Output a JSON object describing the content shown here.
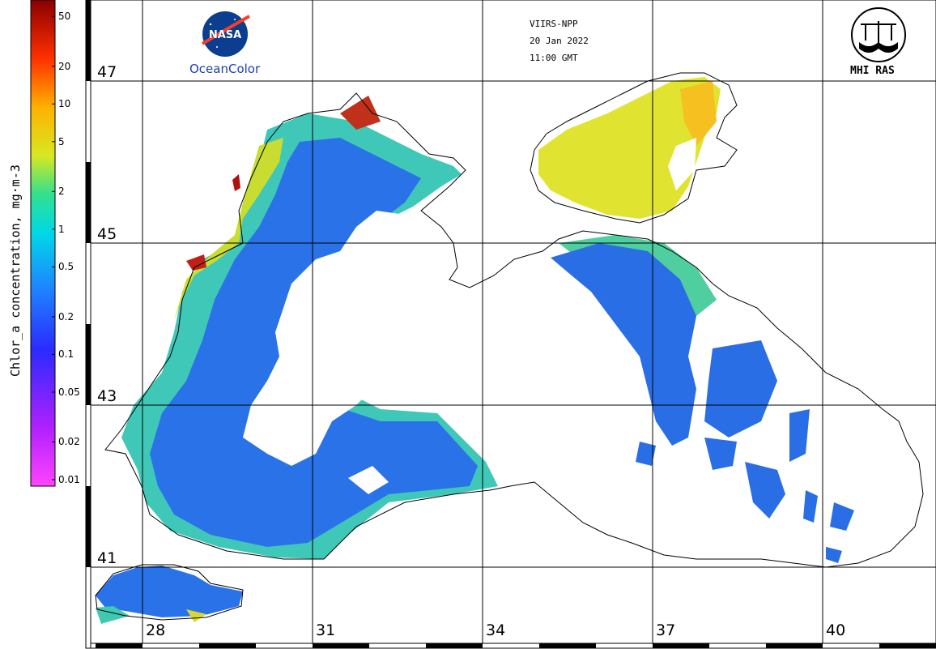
{
  "header": {
    "sensor": "VIIRS-NPP",
    "date": "20 Jan 2022",
    "time": "11:00 GMT"
  },
  "logos": {
    "nasa_label": "NASA",
    "oceancolor": "OceanColor",
    "mhi": "MHI RAS"
  },
  "colorbar": {
    "title": "Chlor_a concentration, mg·m-3",
    "scale": "log",
    "range": [
      0.01,
      60
    ],
    "ticks": [
      {
        "label": "50",
        "value": 50
      },
      {
        "label": "20",
        "value": 20
      },
      {
        "label": "10",
        "value": 10
      },
      {
        "label": "5",
        "value": 5
      },
      {
        "label": "2",
        "value": 2
      },
      {
        "label": "1",
        "value": 1
      },
      {
        "label": "0.5",
        "value": 0.5
      },
      {
        "label": "0.2",
        "value": 0.2
      },
      {
        "label": "0.1",
        "value": 0.1
      },
      {
        "label": "0.05",
        "value": 0.05
      },
      {
        "label": "0.02",
        "value": 0.02
      },
      {
        "label": "0.01",
        "value": 0.01
      }
    ],
    "colors": [
      "#ff33ff",
      "#a020f0",
      "#2020ff",
      "#1e90ff",
      "#00e0e0",
      "#22dd88",
      "#e8e020",
      "#ff8000",
      "#cc0000",
      "#800000"
    ]
  },
  "grid": {
    "latitudes": [
      "47",
      "45",
      "43",
      "41"
    ],
    "longitudes": [
      "28",
      "31",
      "34",
      "37",
      "40"
    ]
  }
}
